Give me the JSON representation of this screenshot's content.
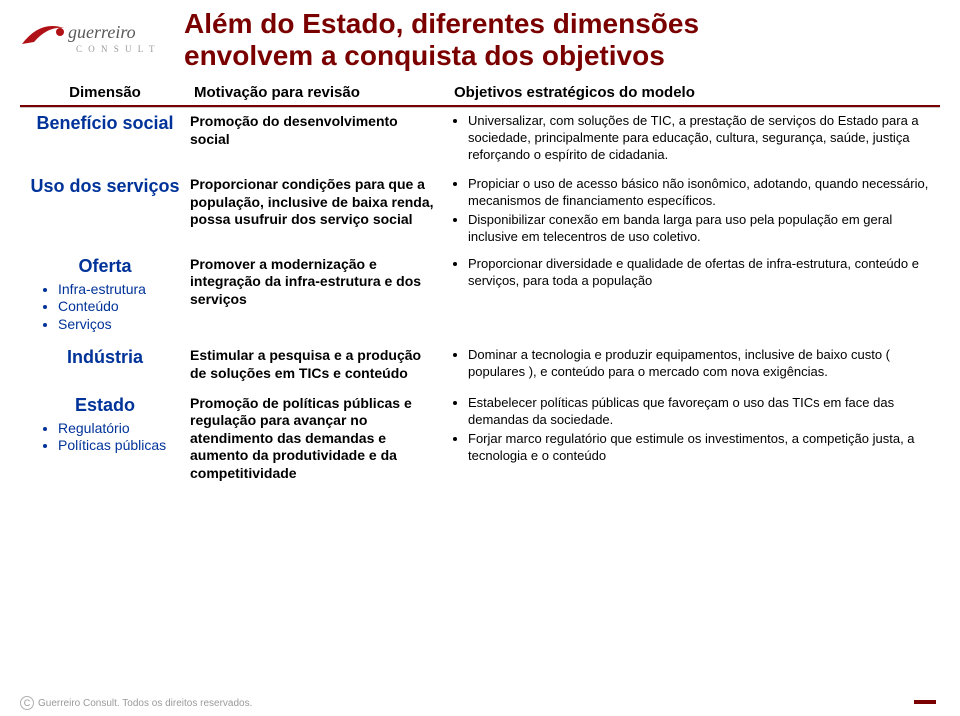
{
  "colors": {
    "brand_red": "#7a0000",
    "logo_swoosh": "#b01116",
    "logo_text_dark": "#5a5a5a",
    "logo_text_light": "#9a9a9a",
    "link_blue": "#003399",
    "body_text": "#000000",
    "footer_gray": "#9a9a9a"
  },
  "typography": {
    "title_fontsize": 28,
    "colhead_fontsize": 15,
    "dim_fontsize": 18,
    "dim_sub_fontsize": 14,
    "motivation_fontsize": 14,
    "objectives_fontsize": 13,
    "footer_fontsize": 10
  },
  "logo": {
    "word1": "guerreiro",
    "word2": "C O N S U L T"
  },
  "title_line1": "Além do Estado, diferentes dimensões",
  "title_line2": "envolvem a conquista dos objetivos",
  "columns": {
    "dim": "Dimensão",
    "mot": "Motivação para revisão",
    "obj": "Objetivos estratégicos do modelo"
  },
  "rows": [
    {
      "dim": "Benefício social",
      "dim_color": "#003399",
      "sub": [],
      "mot": "Promoção do desenvolvimento social",
      "obj": [
        "Universalizar, com soluções de TIC, a prestação de serviços do Estado para a sociedade, principalmente para educação, cultura, segurança, saúde, justiça reforçando o espírito de cidadania."
      ],
      "gap": 10
    },
    {
      "dim": "Uso dos serviços",
      "dim_color": "#003399",
      "sub": [],
      "mot": "Proporcionar condições para que a população, inclusive de baixa renda, possa usufruir dos serviço social",
      "obj": [
        "Propiciar o uso de acesso básico não isonômico, adotando, quando necessário, mecanismos de financiamento específicos.",
        "Disponibilizar conexão em banda larga para uso pela população em geral inclusive em telecentros de uso coletivo."
      ],
      "gap": 8
    },
    {
      "dim": "Oferta",
      "dim_color": "#003399",
      "sub": [
        "Infra-estrutura",
        "Conteúdo",
        "Serviços"
      ],
      "sub_color": "#003399",
      "mot": "Promover a modernização e integração da infra-estrutura e dos serviços",
      "obj": [
        "Proporcionar diversidade e qualidade de ofertas de infra-estrutura, conteúdo e serviços, para toda a população"
      ],
      "gap": 14
    },
    {
      "dim": "Indústria",
      "dim_color": "#003399",
      "sub": [],
      "mot": "Estimular a pesquisa e a produção de soluções em TICs e conteúdo",
      "obj": [
        "Dominar a tecnologia e produzir equipamentos, inclusive de baixo custo ( populares ), e conteúdo para o mercado com nova exigências."
      ],
      "gap": 12
    },
    {
      "dim": "Estado",
      "dim_color": "#003399",
      "sub": [
        "Regulatório",
        "Políticas públicas"
      ],
      "sub_color": "#003399",
      "mot": "Promoção de políticas públicas e regulação para avançar no atendimento das demandas e aumento da produtividade e da competitividade",
      "obj": [
        "Estabelecer políticas públicas que favoreçam o uso das TICs em face das demandas da sociedade.",
        "Forjar marco regulatório que estimule os investimentos, a competição justa, a tecnologia e o conteúdo"
      ],
      "gap": 0
    }
  ],
  "footer": "Guerreiro Consult. Todos os direitos reservados."
}
